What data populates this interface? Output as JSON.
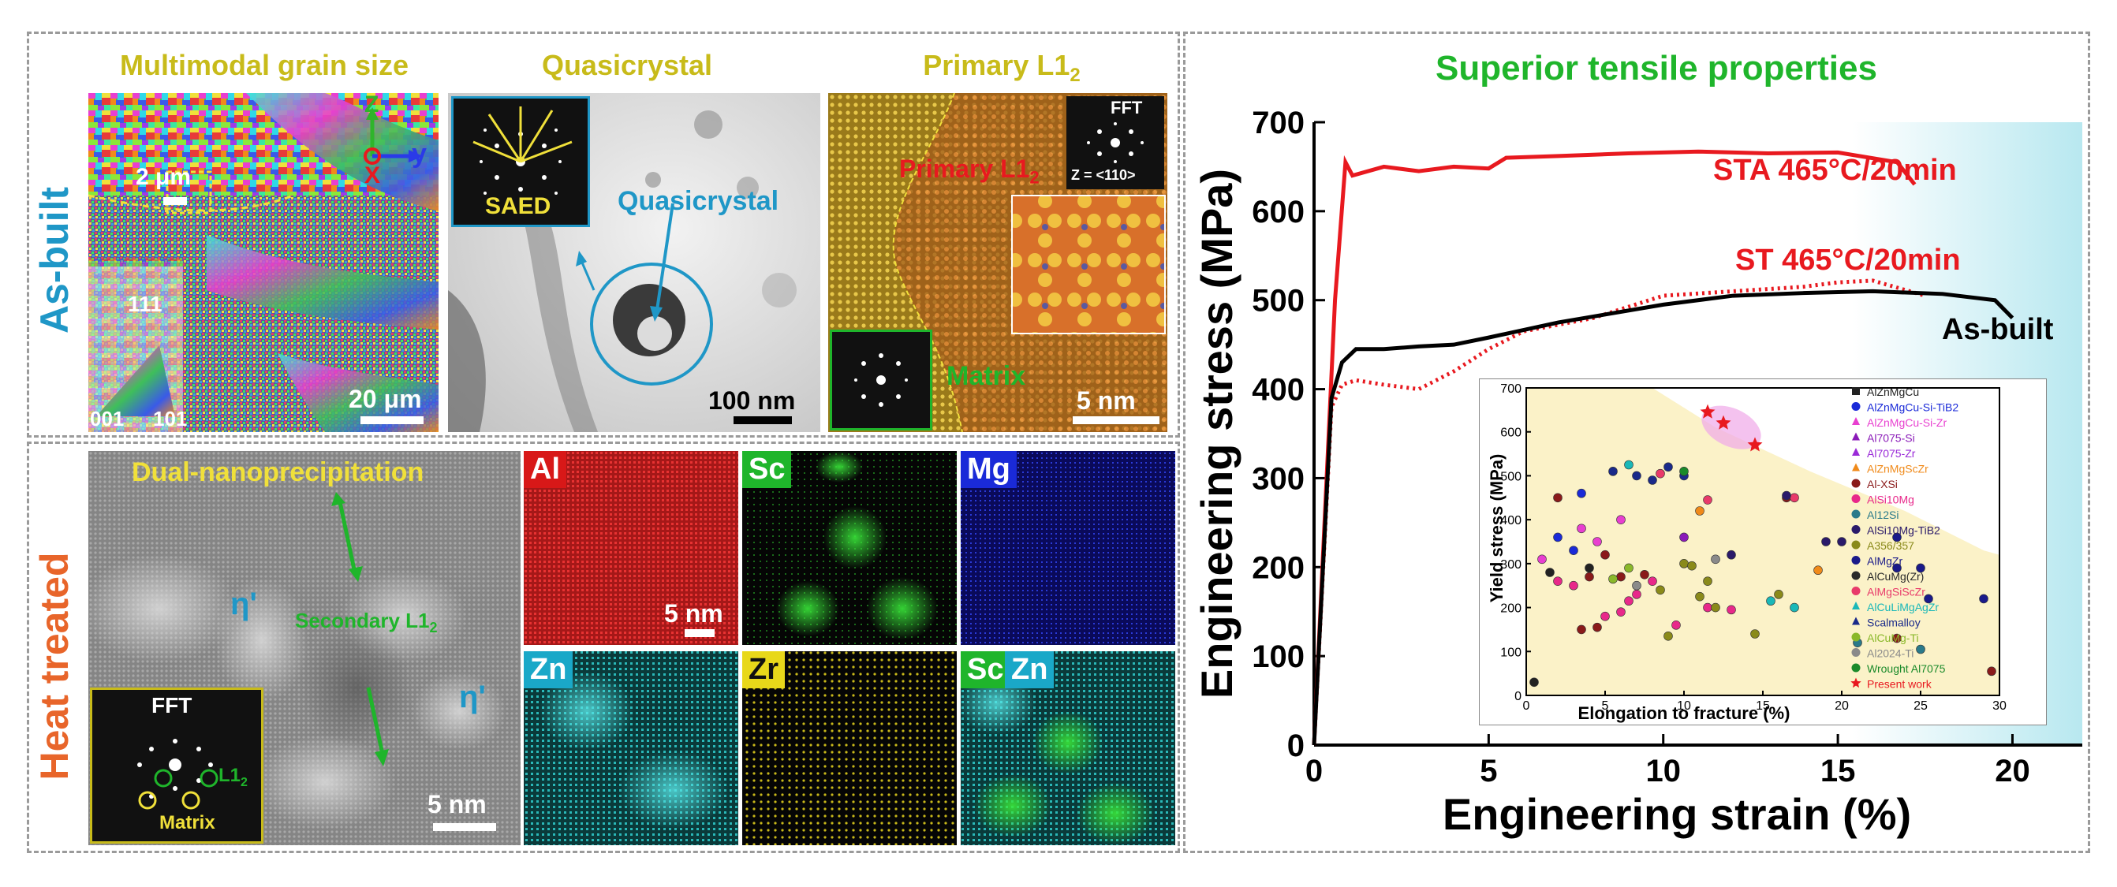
{
  "side_labels": {
    "as_built": "As-built",
    "heat_treated": "Heat treated"
  },
  "panels": {
    "multimodal": {
      "title": "Multimodal grain size",
      "scale_small": "2 μm",
      "scale_large": "20 μm",
      "axis_z": "Z",
      "axis_x": "X",
      "axis_y": "y",
      "ipf_111": "111",
      "ipf_001": "001",
      "ipf_101": "101"
    },
    "quasi": {
      "title": "Quasicrystal",
      "saed": "SAED",
      "label": "Quasicrystal",
      "scale": "100 nm"
    },
    "l12": {
      "title": "Primary L1",
      "title_sub": "2",
      "primary": "Primary L1",
      "primary_sub": "2",
      "fft": "FFT",
      "zone": "Z = <110>",
      "matrix": "Matrix",
      "scale": "5 nm"
    },
    "dual": {
      "title": "Dual-nanoprecipitation",
      "eta1": "η'",
      "eta2": "η'",
      "secondary": "Secondary L1",
      "secondary_sub": "2",
      "fft": "FFT",
      "l12": "L1",
      "l12_sub": "2",
      "matrix": "Matrix",
      "scale": "5 nm"
    },
    "eds": {
      "al": "Al",
      "sc": "Sc",
      "mg": "Mg",
      "zn": "Zn",
      "zr": "Zr",
      "sc2": "Sc",
      "zn2": "Zn",
      "scale": "5 nm"
    }
  },
  "colors": {
    "title_yellow": "#c8bb1a",
    "as_built_blue": "#1f97c7",
    "heat_orange": "#e8652a",
    "green": "#1fb52b",
    "sta_red": "#e8191f",
    "black": "#000000"
  },
  "chart_data": [
    {
      "type": "line",
      "title": "Superior tensile properties",
      "xlabel": "Engineering strain (%)",
      "ylabel": "Engineering stress (MPa)",
      "xlim": [
        0,
        22
      ],
      "ylim": [
        0,
        700
      ],
      "xticks": [
        0,
        5,
        10,
        15,
        20
      ],
      "yticks": [
        0,
        100,
        200,
        300,
        400,
        500,
        600,
        700
      ],
      "series": [
        {
          "name": "STA 465°C/20min",
          "color": "#e8191f",
          "style": "solid",
          "x": [
            0,
            0.6,
            0.9,
            1.1,
            2,
            3,
            4,
            5,
            5.5,
            7,
            9,
            11,
            13,
            15,
            16.7,
            17.2
          ],
          "y": [
            0,
            500,
            655,
            640,
            650,
            645,
            650,
            648,
            660,
            662,
            665,
            667,
            665,
            666,
            655,
            630
          ]
        },
        {
          "name": "ST 465°C/20min",
          "color": "#e8191f",
          "style": "dotted",
          "x": [
            0,
            0.5,
            0.8,
            1.2,
            2,
            3,
            4,
            5,
            6,
            8,
            10,
            12,
            14,
            15,
            16,
            17.5
          ],
          "y": [
            0,
            380,
            405,
            410,
            405,
            400,
            420,
            445,
            465,
            480,
            505,
            510,
            515,
            520,
            522,
            505
          ]
        },
        {
          "name": "As-built",
          "color": "#000000",
          "style": "solid",
          "x": [
            0,
            0.5,
            0.8,
            1.2,
            2,
            3,
            4,
            5,
            7,
            10,
            12,
            14,
            16,
            18,
            19.5,
            20
          ],
          "y": [
            0,
            390,
            430,
            445,
            445,
            448,
            450,
            458,
            475,
            495,
            505,
            508,
            510,
            507,
            500,
            480
          ]
        }
      ],
      "annotations": [
        "STA 465°C/20min",
        "ST 465°C/20min",
        "As-built"
      ]
    },
    {
      "type": "scatter",
      "xlabel": "Elongation to fracture (%)",
      "ylabel": "Yield stress (MPa)",
      "xlim": [
        0,
        30
      ],
      "ylim": [
        0,
        700
      ],
      "xticks": [
        0,
        5,
        10,
        15,
        20,
        25,
        30
      ],
      "yticks": [
        0,
        100,
        200,
        300,
        400,
        500,
        600,
        700
      ],
      "legend": [
        {
          "name": "AlZnMgCu",
          "color": "#222222",
          "marker": "square"
        },
        {
          "name": "AlZnMgCu-Si-TiB2",
          "color": "#1a2ad8",
          "marker": "circle"
        },
        {
          "name": "AlZnMgCu-Si-Zr",
          "color": "#e83fd0",
          "marker": "triangle"
        },
        {
          "name": "Al7075-Si",
          "color": "#8a1ab8",
          "marker": "triangle-down"
        },
        {
          "name": "Al7075-Zr",
          "color": "#9a2ad8",
          "marker": "triangle-left"
        },
        {
          "name": "AlZnMgScZr",
          "color": "#f08a1a",
          "marker": "triangle-right"
        },
        {
          "name": "Al-XSi",
          "color": "#8a1a1a",
          "marker": "diamond"
        },
        {
          "name": "AlSi10Mg",
          "color": "#e8288a",
          "marker": "pentagon"
        },
        {
          "name": "Al12Si",
          "color": "#2a7a8a",
          "marker": "hexagon"
        },
        {
          "name": "AlSi10Mg-TiB2",
          "color": "#2a1a6a",
          "marker": "half-circle"
        },
        {
          "name": "A356/357",
          "color": "#8a8a1a",
          "marker": "half-square"
        },
        {
          "name": "AlMgZr",
          "color": "#1a1a8a",
          "marker": "half-circle"
        },
        {
          "name": "AlCuMg(Zr)",
          "color": "#2a2a2a",
          "marker": "half-triangle"
        },
        {
          "name": "AlMgSiScZr",
          "color": "#e83a6a",
          "marker": "half-triangle-down"
        },
        {
          "name": "AlCuLiMgAgZr",
          "color": "#1ab8b8",
          "marker": "triangle-left"
        },
        {
          "name": "Scalmalloy",
          "color": "#1a2a8a",
          "marker": "triangle-right"
        },
        {
          "name": "AlCuMg-Ti",
          "color": "#8ab82a",
          "marker": "half-square"
        },
        {
          "name": "Al2024-Ti",
          "color": "#8a8a8a",
          "marker": "half-circle"
        },
        {
          "name": "Wrought Al7075",
          "color": "#1a8a2a",
          "marker": "half-circle"
        },
        {
          "name": "Present work",
          "color": "#e8191f",
          "marker": "star"
        }
      ],
      "present_work": [
        {
          "x": 11.5,
          "y": 645
        },
        {
          "x": 12.5,
          "y": 620
        },
        {
          "x": 14.5,
          "y": 570
        }
      ],
      "other_points": [
        {
          "x": 0.5,
          "y": 30,
          "c": "#222222"
        },
        {
          "x": 3.5,
          "y": 150,
          "c": "#8a1a1a"
        },
        {
          "x": 4.5,
          "y": 155,
          "c": "#8a1a1a"
        },
        {
          "x": 4,
          "y": 270,
          "c": "#8a1a1a"
        },
        {
          "x": 6,
          "y": 270,
          "c": "#8a1a1a"
        },
        {
          "x": 7.5,
          "y": 275,
          "c": "#8a1a1a"
        },
        {
          "x": 5,
          "y": 320,
          "c": "#8a1a1a"
        },
        {
          "x": 2,
          "y": 450,
          "c": "#8a1a1a"
        },
        {
          "x": 16.5,
          "y": 450,
          "c": "#8a1a1a"
        },
        {
          "x": 23.5,
          "y": 130,
          "c": "#8a1a1a"
        },
        {
          "x": 29.5,
          "y": 55,
          "c": "#8a1a1a"
        },
        {
          "x": 1,
          "y": 310,
          "c": "#e83fd0"
        },
        {
          "x": 4.5,
          "y": 350,
          "c": "#e83fd0"
        },
        {
          "x": 6,
          "y": 400,
          "c": "#e83fd0"
        },
        {
          "x": 3.5,
          "y": 380,
          "c": "#e83fd0"
        },
        {
          "x": 2,
          "y": 360,
          "c": "#1a2ad8"
        },
        {
          "x": 3.5,
          "y": 460,
          "c": "#1a2ad8"
        },
        {
          "x": 3,
          "y": 330,
          "c": "#1a2ad8"
        },
        {
          "x": 2,
          "y": 260,
          "c": "#e8288a"
        },
        {
          "x": 3,
          "y": 250,
          "c": "#e8288a"
        },
        {
          "x": 5,
          "y": 180,
          "c": "#e8288a"
        },
        {
          "x": 6,
          "y": 190,
          "c": "#e8288a"
        },
        {
          "x": 7,
          "y": 230,
          "c": "#e8288a"
        },
        {
          "x": 9.5,
          "y": 160,
          "c": "#e8288a"
        },
        {
          "x": 11.5,
          "y": 200,
          "c": "#e8288a"
        },
        {
          "x": 13,
          "y": 195,
          "c": "#e8288a"
        },
        {
          "x": 8,
          "y": 260,
          "c": "#e8288a"
        },
        {
          "x": 6.5,
          "y": 215,
          "c": "#e8288a"
        },
        {
          "x": 8.5,
          "y": 240,
          "c": "#8a8a1a"
        },
        {
          "x": 9,
          "y": 135,
          "c": "#8a8a1a"
        },
        {
          "x": 10,
          "y": 300,
          "c": "#8a8a1a"
        },
        {
          "x": 11,
          "y": 225,
          "c": "#8a8a1a"
        },
        {
          "x": 11.5,
          "y": 260,
          "c": "#8a8a1a"
        },
        {
          "x": 12,
          "y": 200,
          "c": "#8a8a1a"
        },
        {
          "x": 14.5,
          "y": 140,
          "c": "#8a8a1a"
        },
        {
          "x": 16,
          "y": 230,
          "c": "#8a8a1a"
        },
        {
          "x": 10.5,
          "y": 295,
          "c": "#8a8a1a"
        },
        {
          "x": 5.5,
          "y": 510,
          "c": "#1a2a8a"
        },
        {
          "x": 7,
          "y": 500,
          "c": "#1a2a8a"
        },
        {
          "x": 8,
          "y": 490,
          "c": "#1a2a8a"
        },
        {
          "x": 10,
          "y": 500,
          "c": "#1a2a8a"
        },
        {
          "x": 9,
          "y": 520,
          "c": "#1a2a8a"
        },
        {
          "x": 6.5,
          "y": 525,
          "c": "#1ab8b8"
        },
        {
          "x": 8.5,
          "y": 505,
          "c": "#e83a6a"
        },
        {
          "x": 11.5,
          "y": 445,
          "c": "#e83a6a"
        },
        {
          "x": 17,
          "y": 450,
          "c": "#e83a6a"
        },
        {
          "x": 11,
          "y": 420,
          "c": "#f08a1a"
        },
        {
          "x": 18.5,
          "y": 285,
          "c": "#f08a1a"
        },
        {
          "x": 10,
          "y": 360,
          "c": "#8a1ab8"
        },
        {
          "x": 13,
          "y": 320,
          "c": "#2a1a6a"
        },
        {
          "x": 19,
          "y": 350,
          "c": "#2a1a6a"
        },
        {
          "x": 20,
          "y": 350,
          "c": "#2a1a6a"
        },
        {
          "x": 23.5,
          "y": 360,
          "c": "#1a1a8a"
        },
        {
          "x": 23.5,
          "y": 290,
          "c": "#1a1a8a"
        },
        {
          "x": 25,
          "y": 290,
          "c": "#1a1a8a"
        },
        {
          "x": 25.5,
          "y": 220,
          "c": "#1a1a8a"
        },
        {
          "x": 29,
          "y": 220,
          "c": "#1a1a8a"
        },
        {
          "x": 21,
          "y": 120,
          "c": "#2a7a8a"
        },
        {
          "x": 25,
          "y": 105,
          "c": "#2a7a8a"
        },
        {
          "x": 17,
          "y": 200,
          "c": "#1ab8b8"
        },
        {
          "x": 15.5,
          "y": 215,
          "c": "#1ab8b8"
        },
        {
          "x": 1.5,
          "y": 280,
          "c": "#222222"
        },
        {
          "x": 4,
          "y": 290,
          "c": "#222222"
        },
        {
          "x": 5.5,
          "y": 265,
          "c": "#8ab82a"
        },
        {
          "x": 6.5,
          "y": 290,
          "c": "#8ab82a"
        },
        {
          "x": 7,
          "y": 250,
          "c": "#8a8a8a"
        },
        {
          "x": 12,
          "y": 310,
          "c": "#8a8a8a"
        },
        {
          "x": 10,
          "y": 510,
          "c": "#1a8a2a"
        },
        {
          "x": 16.5,
          "y": 455,
          "c": "#2a1a6a"
        }
      ]
    }
  ]
}
